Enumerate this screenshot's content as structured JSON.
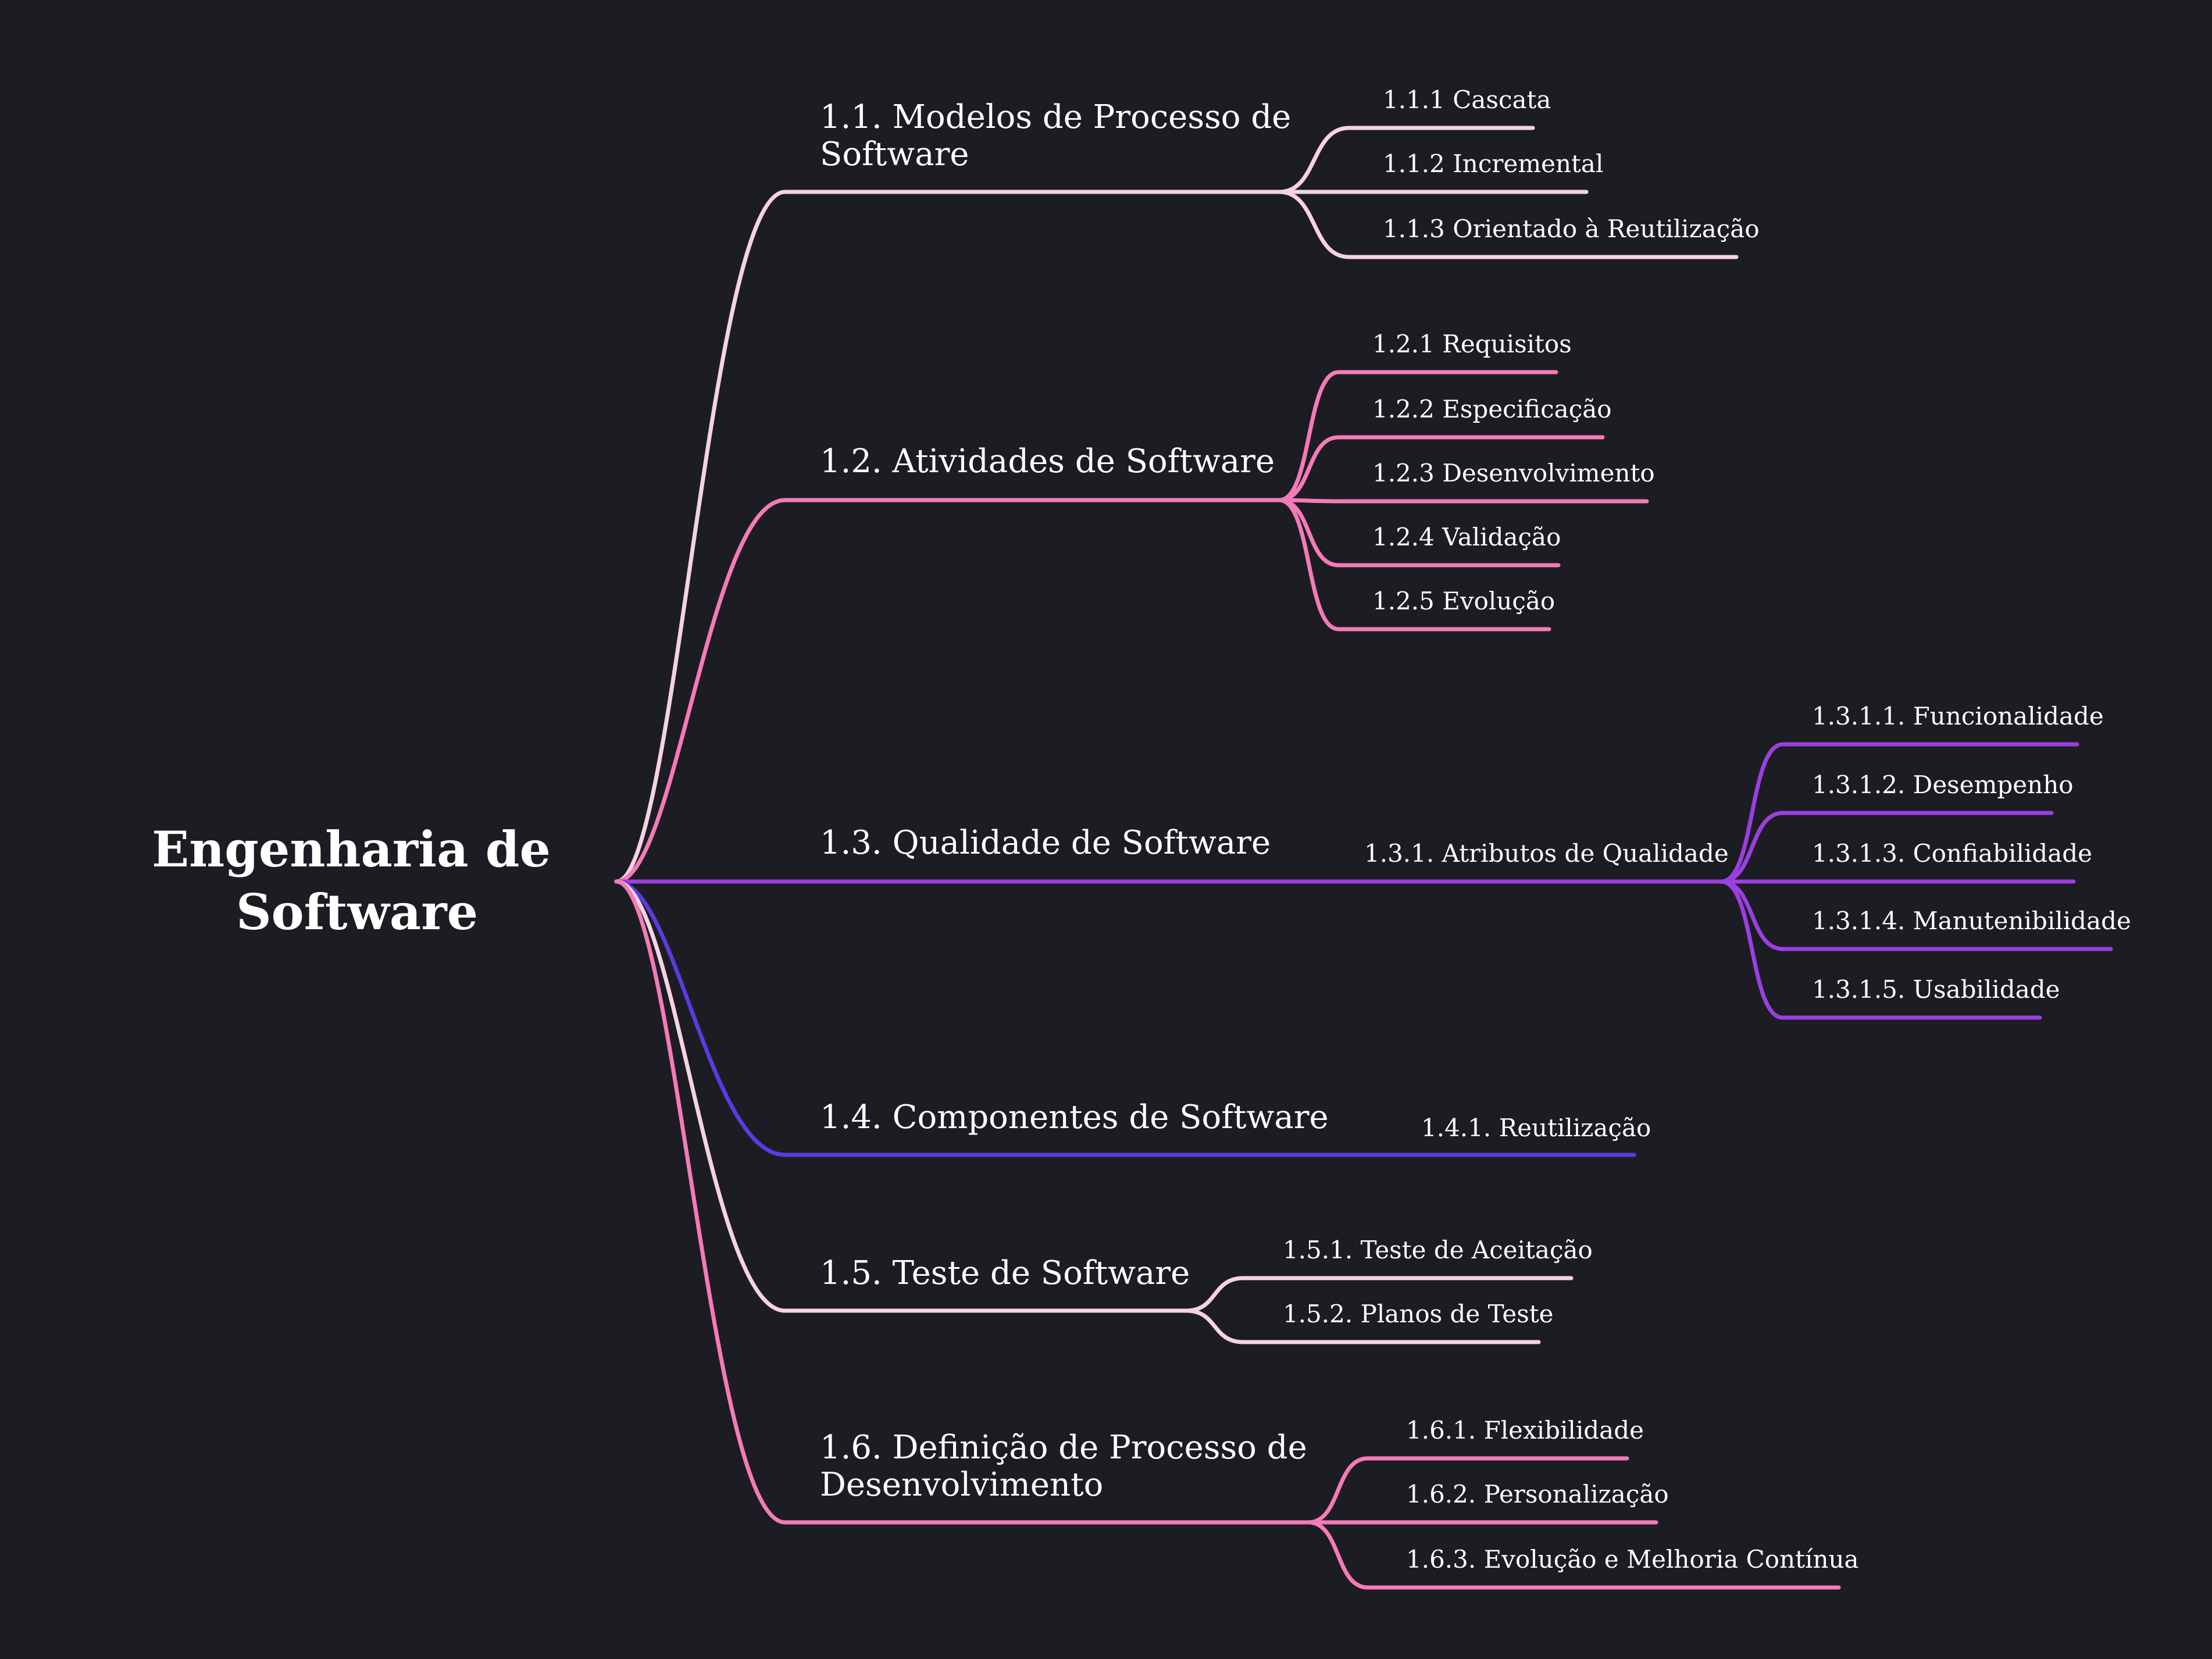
{
  "colors": {
    "background": "#1c1d22",
    "text": "#ffffff",
    "branch_1": "#f6d2e2",
    "branch_2": "#f57ab8",
    "branch_3": "#9b3fe0",
    "branch_4": "#5b3ae0",
    "branch_5": "#f6d2e2",
    "branch_6": "#f57ab8"
  },
  "root": {
    "label_line1": "Engenharia de",
    "label_line2": "Software"
  },
  "branches": [
    {
      "key": "modelos",
      "color": "#f6d2e2",
      "label_lines": [
        "1.1. Modelos de Processo de",
        "Software"
      ],
      "children": [
        {
          "label": "1.1.1 Cascata"
        },
        {
          "label": "1.1.2 Incremental"
        },
        {
          "label": "1.1.3 Orientado à Reutilização"
        }
      ]
    },
    {
      "key": "atividades",
      "color": "#f57ab8",
      "label_lines": [
        "1.2. Atividades de Software"
      ],
      "children": [
        {
          "label": "1.2.1 Requisitos"
        },
        {
          "label": "1.2.2 Especificação"
        },
        {
          "label": "1.2.3 Desenvolvimento"
        },
        {
          "label": "1.2.4 Validação"
        },
        {
          "label": "1.2.5 Evolução"
        }
      ]
    },
    {
      "key": "qualidade",
      "color": "#9b3fe0",
      "label_lines": [
        "1.3. Qualidade de Software"
      ],
      "children": [
        {
          "label": "1.3.1. Atributos de Qualidade",
          "children": [
            {
              "label": "1.3.1.1. Funcionalidade"
            },
            {
              "label": "1.3.1.2. Desempenho"
            },
            {
              "label": "1.3.1.3. Confiabilidade"
            },
            {
              "label": "1.3.1.4. Manutenibilidade"
            },
            {
              "label": "1.3.1.5. Usabilidade"
            }
          ]
        }
      ]
    },
    {
      "key": "componentes",
      "color": "#5b3ae0",
      "label_lines": [
        "1.4. Componentes de Software"
      ],
      "children": [
        {
          "label": "1.4.1. Reutilização"
        }
      ]
    },
    {
      "key": "teste",
      "color": "#f6d2e2",
      "label_lines": [
        "1.5. Teste de Software"
      ],
      "children": [
        {
          "label": "1.5.1. Teste de Aceitação"
        },
        {
          "label": "1.5.2. Planos de Teste"
        }
      ]
    },
    {
      "key": "definicao",
      "color": "#f57ab8",
      "label_lines": [
        "1.6. Definição de Processo de",
        "Desenvolvimento"
      ],
      "children": [
        {
          "label": "1.6.1. Flexibilidade"
        },
        {
          "label": "1.6.2. Personalização"
        },
        {
          "label": "1.6.3. Evolução e Melhoria Contínua"
        }
      ]
    }
  ]
}
